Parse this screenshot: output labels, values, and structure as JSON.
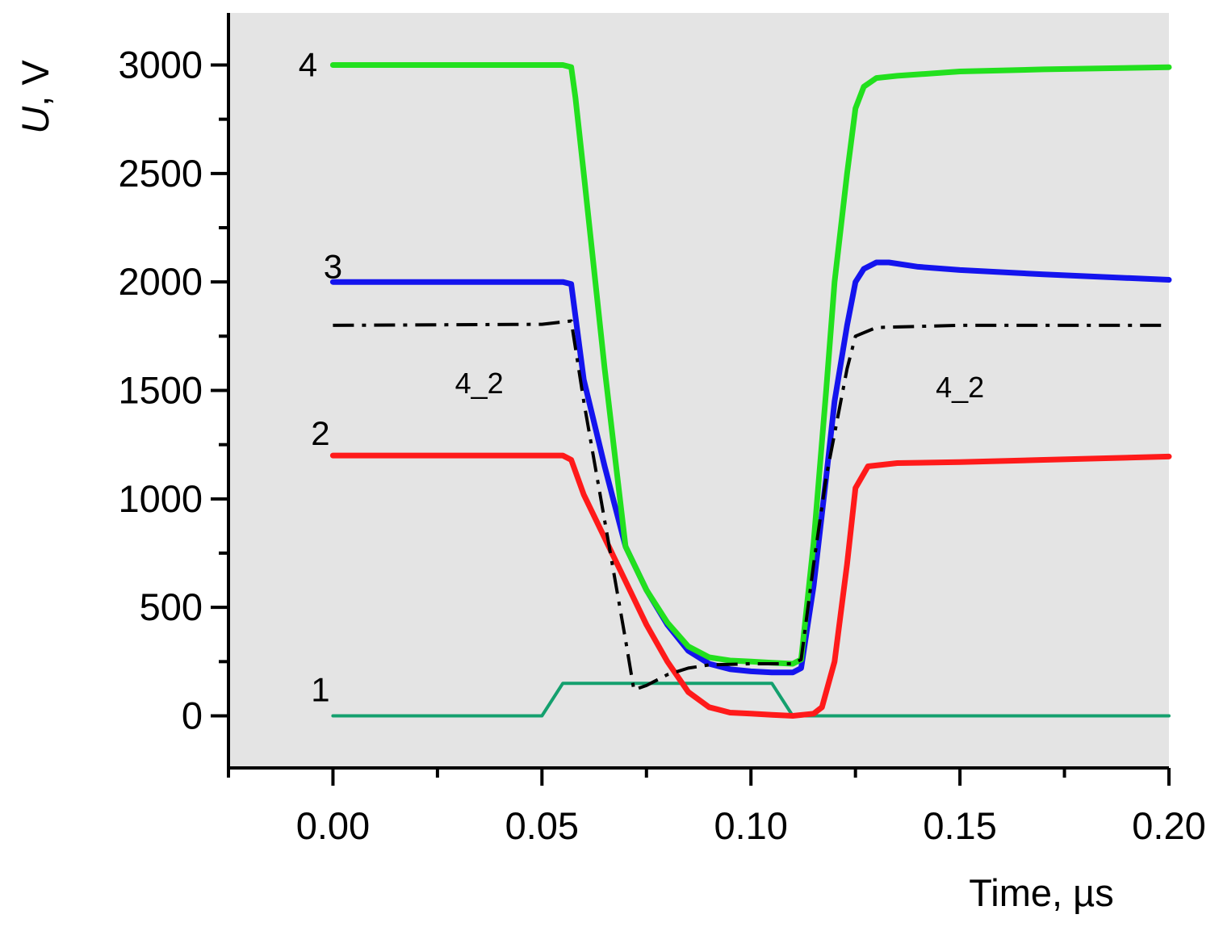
{
  "chart_data": {
    "type": "line",
    "title": "",
    "xlabel": "Time, µs",
    "ylabel_italic": "U",
    "ylabel_unit": ", V",
    "xlim": [
      -0.025,
      0.2
    ],
    "ylim": [
      -240,
      3240
    ],
    "x_ticks": [
      0.0,
      0.05,
      0.1,
      0.15,
      0.2
    ],
    "x_tick_labels": [
      "0.00",
      "0.05",
      "0.10",
      "0.15",
      "0.20"
    ],
    "x_minor_ticks": [
      -0.025,
      0.025,
      0.075,
      0.125,
      0.175
    ],
    "y_ticks": [
      0,
      500,
      1000,
      1500,
      2000,
      2500,
      3000
    ],
    "y_tick_labels": [
      "0",
      "500",
      "1000",
      "1500",
      "2000",
      "2500",
      "3000"
    ],
    "y_minor_ticks": [
      -250,
      250,
      750,
      1250,
      1750,
      2250,
      2750,
      3250
    ],
    "grid": false,
    "plot_background": "#e4e4e4",
    "series": [
      {
        "name": "1",
        "color": "#14a06e",
        "width": 4,
        "dash": "",
        "x": [
          0.0,
          0.05,
          0.055,
          0.105,
          0.11,
          0.2
        ],
        "y": [
          0,
          0,
          150,
          150,
          0,
          0
        ]
      },
      {
        "name": "2",
        "color": "#ff1a1a",
        "width": 7,
        "dash": "",
        "x": [
          0.0,
          0.055,
          0.057,
          0.06,
          0.065,
          0.07,
          0.075,
          0.08,
          0.085,
          0.09,
          0.095,
          0.1,
          0.105,
          0.11,
          0.115,
          0.117,
          0.12,
          0.123,
          0.125,
          0.128,
          0.135,
          0.15,
          0.17,
          0.2
        ],
        "y": [
          1200,
          1200,
          1180,
          1020,
          820,
          620,
          420,
          250,
          110,
          40,
          15,
          10,
          5,
          0,
          10,
          40,
          250,
          700,
          1050,
          1150,
          1165,
          1170,
          1180,
          1195
        ]
      },
      {
        "name": "3",
        "color": "#1414ee",
        "width": 7,
        "dash": "",
        "x": [
          0.0,
          0.055,
          0.057,
          0.06,
          0.065,
          0.07,
          0.075,
          0.08,
          0.085,
          0.09,
          0.095,
          0.1,
          0.105,
          0.11,
          0.112,
          0.115,
          0.118,
          0.12,
          0.123,
          0.125,
          0.127,
          0.13,
          0.133,
          0.14,
          0.15,
          0.17,
          0.2
        ],
        "y": [
          2000,
          2000,
          1990,
          1550,
          1150,
          780,
          580,
          420,
          300,
          240,
          215,
          205,
          200,
          200,
          220,
          600,
          1100,
          1450,
          1800,
          2000,
          2060,
          2090,
          2090,
          2070,
          2055,
          2035,
          2010
        ]
      },
      {
        "name": "4",
        "color": "#22e01e",
        "width": 7,
        "dash": "",
        "x": [
          0.0,
          0.055,
          0.057,
          0.058,
          0.06,
          0.065,
          0.07,
          0.075,
          0.08,
          0.085,
          0.09,
          0.095,
          0.1,
          0.105,
          0.11,
          0.112,
          0.115,
          0.118,
          0.12,
          0.123,
          0.125,
          0.127,
          0.13,
          0.135,
          0.15,
          0.17,
          0.2
        ],
        "y": [
          3000,
          3000,
          2990,
          2850,
          2500,
          1600,
          780,
          580,
          430,
          320,
          270,
          255,
          250,
          245,
          240,
          260,
          800,
          1500,
          2000,
          2500,
          2800,
          2900,
          2940,
          2950,
          2970,
          2980,
          2990
        ]
      },
      {
        "name": "4_2",
        "color": "#000000",
        "width": 4,
        "dash": "26 10 5 10",
        "x": [
          0.0,
          0.05,
          0.057,
          0.06,
          0.065,
          0.07,
          0.072,
          0.075,
          0.08,
          0.085,
          0.09,
          0.1,
          0.11,
          0.112,
          0.115,
          0.118,
          0.12,
          0.123,
          0.125,
          0.13,
          0.14,
          0.15,
          0.17,
          0.2
        ],
        "y": [
          1800,
          1805,
          1820,
          1450,
          900,
          350,
          120,
          140,
          190,
          220,
          235,
          240,
          240,
          260,
          700,
          1100,
          1300,
          1600,
          1750,
          1790,
          1795,
          1800,
          1800,
          1800
        ]
      }
    ],
    "annotations": [
      {
        "text": "4",
        "x": -0.006,
        "y": 3000,
        "size": "large"
      },
      {
        "text": "3",
        "x": -0.0,
        "y": 2070,
        "size": "large"
      },
      {
        "text": "2",
        "x": -0.003,
        "y": 1300,
        "size": "large"
      },
      {
        "text": "1",
        "x": -0.003,
        "y": 120,
        "size": "large"
      },
      {
        "text": "4_2",
        "x": 0.035,
        "y": 1540,
        "size": "small"
      },
      {
        "text": "4_2",
        "x": 0.15,
        "y": 1520,
        "size": "small"
      }
    ]
  }
}
